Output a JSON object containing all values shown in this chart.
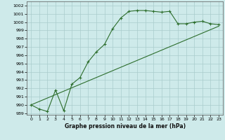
{
  "title": "Graphe pression niveau de la mer (hPa)",
  "background_color": "#ceeaea",
  "grid_color": "#aacccc",
  "line_color": "#2d6e2d",
  "xlim": [
    -0.5,
    23.5
  ],
  "ylim": [
    988.8,
    1002.5
  ],
  "yticks": [
    989,
    990,
    991,
    992,
    993,
    994,
    995,
    996,
    997,
    998,
    999,
    1000,
    1001,
    1002
  ],
  "xticks": [
    0,
    1,
    2,
    3,
    4,
    5,
    6,
    7,
    8,
    9,
    10,
    11,
    12,
    13,
    14,
    15,
    16,
    17,
    18,
    19,
    20,
    21,
    22,
    23
  ],
  "series1_x": [
    0,
    1,
    2,
    3,
    4,
    5,
    6,
    7,
    8,
    9,
    10,
    11,
    12,
    13,
    14,
    15,
    16,
    17,
    18,
    19,
    20,
    21,
    22,
    23
  ],
  "series1_y": [
    990.0,
    989.5,
    989.2,
    991.8,
    989.3,
    992.5,
    993.3,
    995.2,
    996.4,
    997.3,
    999.2,
    1000.5,
    1001.3,
    1001.4,
    1001.4,
    1001.3,
    1001.2,
    1001.3,
    999.8,
    999.8,
    1000.0,
    1000.1,
    999.8,
    999.7
  ],
  "series2_x": [
    0,
    23
  ],
  "series2_y": [
    990.0,
    999.5
  ]
}
